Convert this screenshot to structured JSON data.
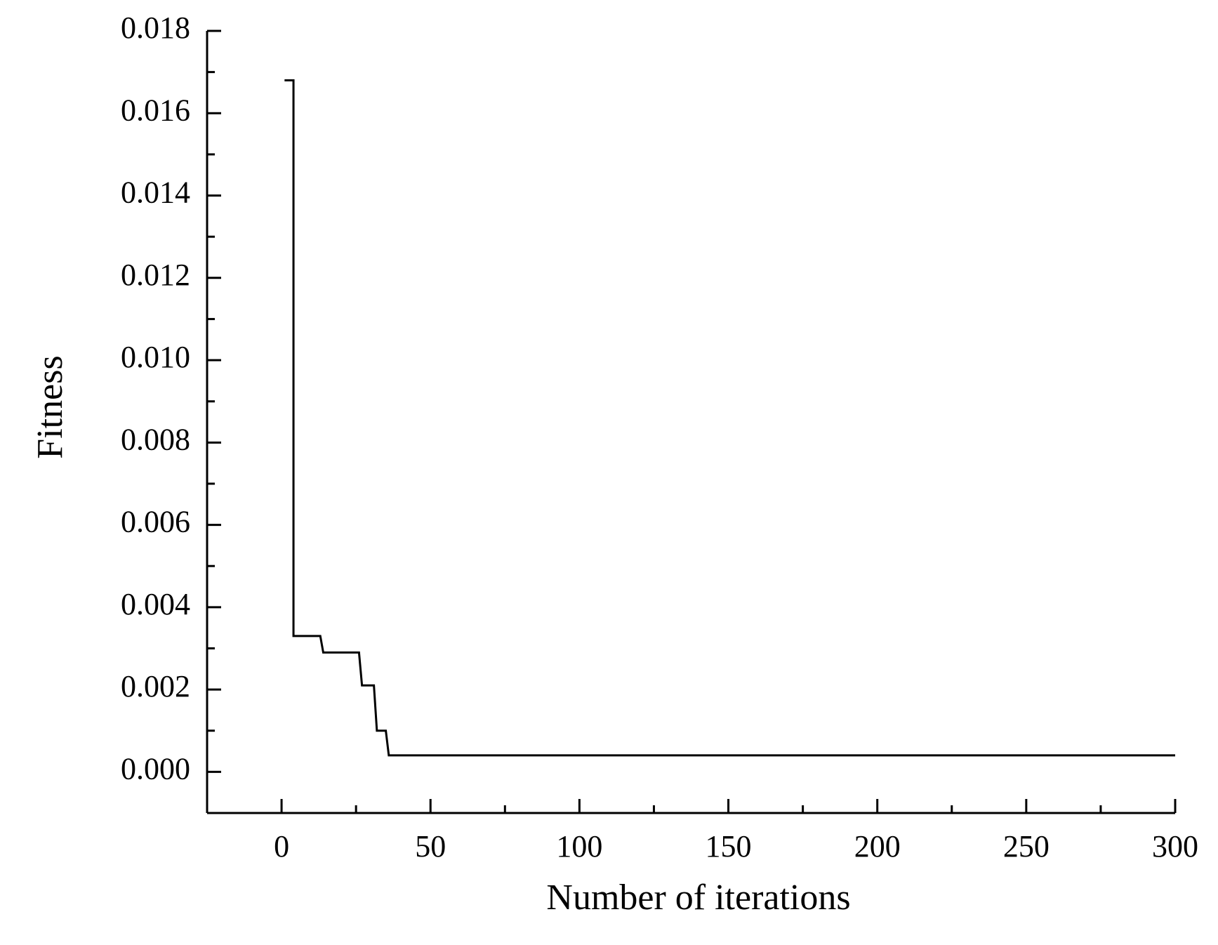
{
  "chart_data": {
    "type": "line",
    "x_label": "Number of iterations",
    "y_label": "Fitness",
    "series": [
      {
        "color": "#000000",
        "x": [
          1,
          4,
          4,
          13,
          14,
          26,
          27,
          31,
          32,
          35,
          36,
          300
        ],
        "values": [
          0.0168,
          0.0168,
          0.0033,
          0.0033,
          0.0029,
          0.0029,
          0.0021,
          0.0021,
          0.001,
          0.001,
          0.0004,
          0.0004
        ]
      }
    ],
    "xlim": [
      -25,
      300
    ],
    "ylim": [
      -0.001,
      0.018
    ],
    "xticks": [
      0,
      50,
      100,
      150,
      200,
      250,
      300
    ],
    "yticks": [
      {
        "value": 0,
        "label": "0.000"
      },
      {
        "value": 0.002,
        "label": "0.002"
      },
      {
        "value": 0.004,
        "label": "0.004"
      },
      {
        "value": 0.006,
        "label": "0.006"
      },
      {
        "value": 0.008,
        "label": "0.008"
      },
      {
        "value": 0.01,
        "label": "0.010"
      },
      {
        "value": 0.012,
        "label": "0.012"
      },
      {
        "value": 0.014,
        "label": "0.014"
      },
      {
        "value": 0.016,
        "label": "0.016"
      },
      {
        "value": 0.018,
        "label": "0.018"
      }
    ],
    "xminorticks": [
      25,
      75,
      125,
      175,
      225,
      275
    ],
    "yminorticks": [
      0.001,
      0.003,
      0.005,
      0.007,
      0.009,
      0.011,
      0.013,
      0.015,
      0.017
    ],
    "grid": false
  }
}
